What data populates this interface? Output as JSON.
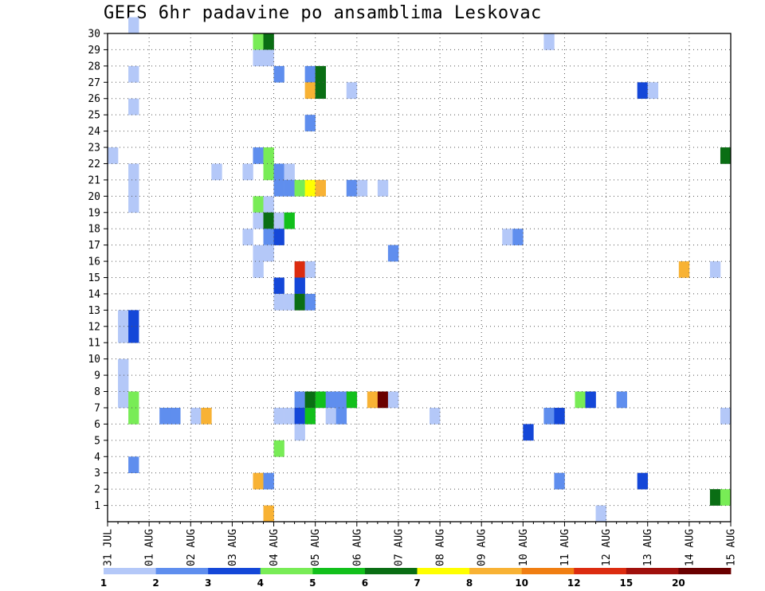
{
  "title": "GEFS 6hr padavine po ansamblima Leskovac",
  "chart_data": {
    "type": "heatmap",
    "title": "GEFS 6hr padavine po ansamblima Leskovac",
    "x_tick_labels": [
      "31 JUL",
      "01 AUG",
      "02 AUG",
      "03 AUG",
      "04 AUG",
      "05 AUG",
      "06 AUG",
      "07 AUG",
      "08 AUG",
      "09 AUG",
      "10 AUG",
      "11 AUG",
      "12 AUG",
      "13 AUG",
      "14 AUG",
      "15 AUG"
    ],
    "y_tick_labels": [
      "1",
      "2",
      "3",
      "4",
      "5",
      "6",
      "7",
      "8",
      "9",
      "10",
      "11",
      "12",
      "13",
      "14",
      "15",
      "16",
      "17",
      "18",
      "19",
      "20",
      "21",
      "22",
      "23",
      "24",
      "25",
      "26",
      "27",
      "28",
      "29",
      "30"
    ],
    "x_steps_per_day": 4,
    "y_range": [
      0,
      30
    ],
    "grid": true,
    "legend_position": "bottom",
    "legend_labels": [
      "1",
      "2",
      "3",
      "4",
      "5",
      "6",
      "7",
      "8",
      "10",
      "12",
      "15",
      "20"
    ],
    "legend_colors": [
      "#b4c8f8",
      "#5f8eee",
      "#1447d8",
      "#78ec56",
      "#12c01b",
      "#0a6e14",
      "#ffff00",
      "#f8b234",
      "#f07e12",
      "#dc2c10",
      "#a0100c",
      "#6a0000"
    ],
    "cells": [
      [
        2,
        30,
        0
      ],
      [
        14,
        29,
        3
      ],
      [
        15,
        29,
        5
      ],
      [
        14,
        28,
        0
      ],
      [
        15,
        28,
        0
      ],
      [
        42,
        29,
        0
      ],
      [
        2,
        27,
        0
      ],
      [
        16,
        27,
        1
      ],
      [
        19,
        27,
        1
      ],
      [
        20,
        27,
        5
      ],
      [
        19,
        26,
        7
      ],
      [
        20,
        26,
        5
      ],
      [
        23,
        26,
        0
      ],
      [
        51,
        26,
        2
      ],
      [
        52,
        26,
        0
      ],
      [
        2,
        25,
        0
      ],
      [
        19,
        24,
        1
      ],
      [
        0,
        22,
        0
      ],
      [
        14,
        22,
        1
      ],
      [
        15,
        22,
        3
      ],
      [
        59,
        22,
        5
      ],
      [
        2,
        21,
        0
      ],
      [
        10,
        21,
        0
      ],
      [
        13,
        21,
        0
      ],
      [
        15,
        21,
        3
      ],
      [
        16,
        21,
        1
      ],
      [
        17,
        21,
        0
      ],
      [
        2,
        20,
        0
      ],
      [
        16,
        20,
        1
      ],
      [
        17,
        20,
        1
      ],
      [
        18,
        20,
        3
      ],
      [
        19,
        20,
        6
      ],
      [
        20,
        20,
        7
      ],
      [
        23,
        20,
        1
      ],
      [
        24,
        20,
        0
      ],
      [
        26,
        20,
        0
      ],
      [
        2,
        19,
        0
      ],
      [
        14,
        19,
        3
      ],
      [
        15,
        19,
        0
      ],
      [
        14,
        18,
        0
      ],
      [
        15,
        18,
        5
      ],
      [
        16,
        18,
        0
      ],
      [
        17,
        18,
        4
      ],
      [
        13,
        17,
        0
      ],
      [
        15,
        17,
        1
      ],
      [
        16,
        17,
        2
      ],
      [
        38,
        17,
        0
      ],
      [
        39,
        17,
        1
      ],
      [
        14,
        16,
        0
      ],
      [
        15,
        16,
        0
      ],
      [
        27,
        16,
        1
      ],
      [
        14,
        15,
        0
      ],
      [
        18,
        15,
        9
      ],
      [
        19,
        15,
        0
      ],
      [
        55,
        15,
        7
      ],
      [
        58,
        15,
        0
      ],
      [
        16,
        14,
        2
      ],
      [
        18,
        14,
        2
      ],
      [
        16,
        13,
        0
      ],
      [
        17,
        13,
        0
      ],
      [
        18,
        13,
        5
      ],
      [
        19,
        13,
        1
      ],
      [
        1,
        12,
        0
      ],
      [
        2,
        12,
        2
      ],
      [
        1,
        11,
        0
      ],
      [
        2,
        11,
        2
      ],
      [
        1,
        9,
        0
      ],
      [
        1,
        8,
        0
      ],
      [
        1,
        7,
        0
      ],
      [
        2,
        7,
        3
      ],
      [
        18,
        7,
        1
      ],
      [
        19,
        7,
        5
      ],
      [
        20,
        7,
        4
      ],
      [
        21,
        7,
        1
      ],
      [
        22,
        7,
        1
      ],
      [
        23,
        7,
        4
      ],
      [
        25,
        7,
        7
      ],
      [
        26,
        7,
        11
      ],
      [
        27,
        7,
        0
      ],
      [
        45,
        7,
        3
      ],
      [
        46,
        7,
        2
      ],
      [
        49,
        7,
        1
      ],
      [
        2,
        6,
        3
      ],
      [
        5,
        6,
        1
      ],
      [
        6,
        6,
        1
      ],
      [
        8,
        6,
        0
      ],
      [
        9,
        6,
        7
      ],
      [
        16,
        6,
        0
      ],
      [
        17,
        6,
        0
      ],
      [
        18,
        6,
        2
      ],
      [
        19,
        6,
        4
      ],
      [
        21,
        6,
        0
      ],
      [
        22,
        6,
        1
      ],
      [
        31,
        6,
        0
      ],
      [
        42,
        6,
        1
      ],
      [
        43,
        6,
        2
      ],
      [
        59,
        6,
        0
      ],
      [
        18,
        5,
        0
      ],
      [
        40,
        5,
        2
      ],
      [
        16,
        4,
        3
      ],
      [
        2,
        3,
        1
      ],
      [
        14,
        2,
        7
      ],
      [
        15,
        2,
        1
      ],
      [
        43,
        2,
        1
      ],
      [
        51,
        2,
        2
      ],
      [
        58,
        1,
        5
      ],
      [
        59,
        1,
        3
      ],
      [
        15,
        0,
        7
      ],
      [
        47,
        0,
        0
      ]
    ]
  }
}
